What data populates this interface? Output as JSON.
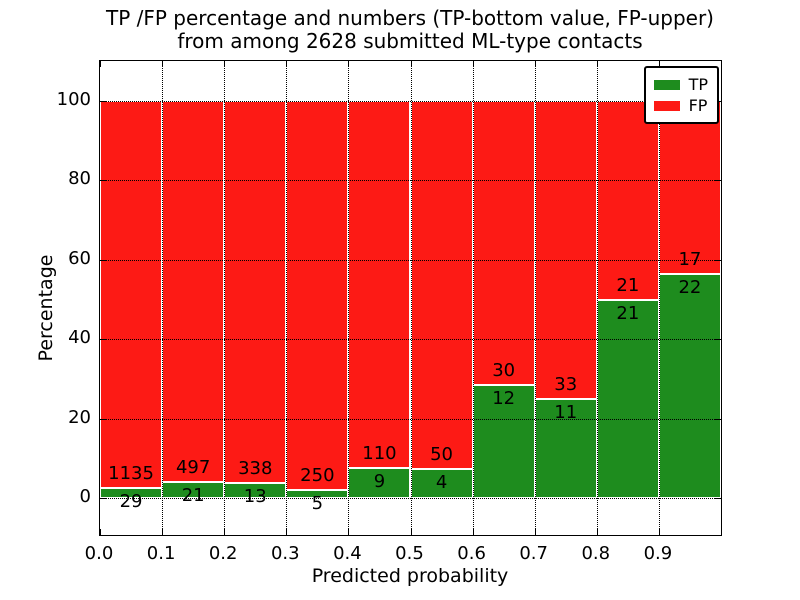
{
  "figure": {
    "title_line1": "TP /FP percentage and numbers (TP-bottom value, FP-upper)",
    "title_line2": "from among 2628 submitted ML-type contacts"
  },
  "chart_data": {
    "type": "bar",
    "stacked": true,
    "title": "TP /FP percentage and numbers (TP-bottom value, FP-upper)\nfrom among 2628 submitted ML-type contacts",
    "xlabel": "Predicted probability",
    "ylabel": "Percentage",
    "xlim": [
      0.0,
      1.0
    ],
    "ylim": [
      -10,
      110
    ],
    "bin_width": 0.1,
    "categories": [
      "0.0-0.1",
      "0.1-0.2",
      "0.2-0.3",
      "0.3-0.4",
      "0.4-0.5",
      "0.5-0.6",
      "0.6-0.7",
      "0.7-0.8",
      "0.8-0.9",
      "0.9-1.0"
    ],
    "series": [
      {
        "name": "TP",
        "color": "#1e8c1e",
        "counts": [
          29,
          21,
          13,
          5,
          9,
          4,
          12,
          11,
          21,
          22
        ]
      },
      {
        "name": "FP",
        "color": "#fd1a15",
        "counts": [
          1135,
          497,
          338,
          250,
          110,
          50,
          30,
          33,
          21,
          17
        ]
      }
    ],
    "tp_percent": [
      2.49,
      4.05,
      3.7,
      1.96,
      7.56,
      7.41,
      28.57,
      25.0,
      50.0,
      56.41
    ],
    "total_contacts": 2628,
    "yticks": [
      0,
      20,
      40,
      60,
      80,
      100
    ],
    "xtick_labels": [
      "0.0",
      "0.1",
      "0.2",
      "0.3",
      "0.4",
      "0.5",
      "0.6",
      "0.7",
      "0.8",
      "0.9"
    ],
    "grid": "dotted",
    "legend": {
      "position": "upper right",
      "entries": [
        "TP",
        "FP"
      ]
    }
  }
}
